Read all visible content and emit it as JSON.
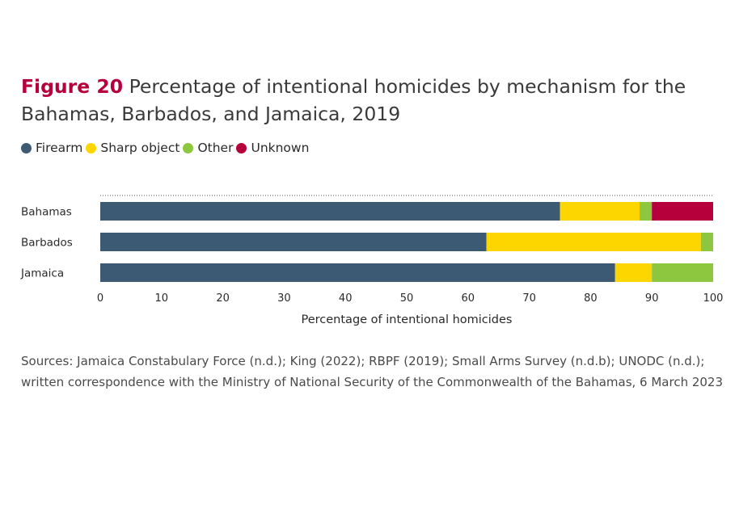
{
  "figure_label": "Figure 20",
  "title": "Percentage of intentional homicides by mechanism for the Bahamas, Barbados, and Jamaica, 2019",
  "sources": "Sources: Jamaica Constabulary Force (n.d.); King (2022); RBPF (2019); Small Arms Survey (n.d.b); UNODC (n.d.); written correspondence with the Ministry of National Security of the Commonwealth of the Bahamas, 6 March 2023",
  "colors": {
    "Firearm": "#3d5a75",
    "Sharp object": "#fdd600",
    "Other": "#8dc63f",
    "Unknown": "#b5003c"
  },
  "chart_data": {
    "type": "bar",
    "orientation": "horizontal",
    "stacked": true,
    "categories": [
      "Bahamas",
      "Barbados",
      "Jamaica"
    ],
    "series": [
      {
        "name": "Firearm",
        "values": [
          75,
          63,
          84
        ]
      },
      {
        "name": "Sharp object",
        "values": [
          13,
          35,
          6
        ]
      },
      {
        "name": "Other",
        "values": [
          2,
          2,
          10
        ]
      },
      {
        "name": "Unknown",
        "values": [
          10,
          0,
          0
        ]
      }
    ],
    "xlabel": "Percentage of intentional homicides",
    "ylabel": "",
    "xlim": [
      0,
      100
    ],
    "xticks": [
      "0",
      "10",
      "20",
      "30",
      "40",
      "50",
      "60",
      "70",
      "80",
      "90",
      "100"
    ],
    "legend_position": "top-left",
    "grid": false
  }
}
